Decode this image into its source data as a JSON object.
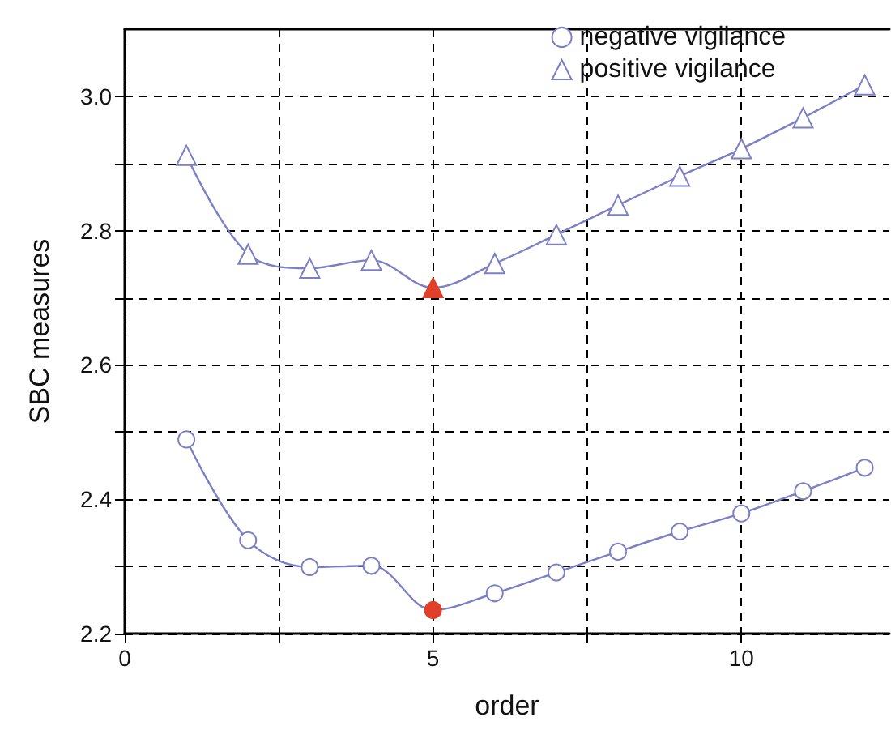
{
  "chart_data": {
    "type": "line",
    "xlabel": "order",
    "ylabel": "SBC measures",
    "x": [
      1,
      2,
      3,
      4,
      5,
      6,
      7,
      8,
      9,
      10,
      11,
      12
    ],
    "series": [
      {
        "name": "negative vigilance",
        "color": "#7b7fc4",
        "marker": "circle",
        "values": [
          2.489,
          2.339,
          2.299,
          2.301,
          2.235,
          2.26,
          2.291,
          2.322,
          2.352,
          2.379,
          2.412,
          2.447
        ],
        "colors": [
          "#ffffff",
          "#ffffff",
          "#ffffff",
          "#ffffff",
          "#e0402a",
          "#ffffff",
          "#ffffff",
          "#ffffff",
          "#ffffff",
          "#ffffff",
          "#ffffff",
          "#ffffff"
        ]
      },
      {
        "name": "positive vigilance",
        "color": "#7b7fc4",
        "marker": "triangle",
        "values": [
          2.912,
          2.765,
          2.744,
          2.756,
          2.715,
          2.751,
          2.794,
          2.838,
          2.881,
          2.922,
          2.968,
          3.017
        ],
        "colors": [
          "#ffffff",
          "#ffffff",
          "#ffffff",
          "#ffffff",
          "#e0402a",
          "#ffffff",
          "#ffffff",
          "#ffffff",
          "#ffffff",
          "#ffffff",
          "#ffffff",
          "#ffffff"
        ]
      }
    ],
    "xlim": [
      0,
      12.4
    ],
    "xticks": [
      0,
      {
        "value": 2.5,
        "label": null
      },
      5,
      {
        "value": 7.5,
        "label": null
      },
      10
    ],
    "ylim": [
      2.2,
      3.1
    ],
    "yticks": [
      2.2,
      {
        "value": 2.3,
        "label": null
      },
      2.4,
      {
        "value": 2.5,
        "label": null
      },
      2.6,
      {
        "value": 2.7,
        "label": null
      },
      2.8,
      {
        "value": 2.9,
        "label": null
      },
      {
        "value": 3.0,
        "label": "3.0"
      }
    ],
    "grid": true,
    "legend": "top right",
    "line_style": "solid"
  }
}
